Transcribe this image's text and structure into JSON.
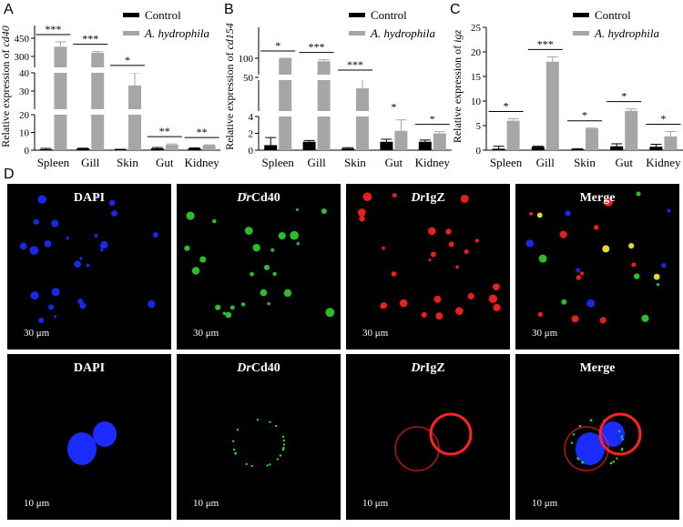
{
  "panels": {
    "a": "A",
    "b": "B",
    "c": "C",
    "d": "D"
  },
  "legend": {
    "control": "Control",
    "treated": "A. hydrophila"
  },
  "colors": {
    "control": "#000000",
    "treated": "#a6a6a6",
    "dapi": "#1a2cff",
    "cd40": "#2fd32f",
    "igz": "#ff2222",
    "yellow": "#ffee33"
  },
  "chart_data": [
    {
      "type": "bar",
      "ylabel": "Relative expression of cd40",
      "categories": [
        "Spleen",
        "Gill",
        "Skin",
        "Gut",
        "Kidney"
      ],
      "yaxis_breaks": [
        [
          0,
          20
        ],
        [
          20,
          40
        ],
        [
          300,
          450
        ]
      ],
      "yticks": [
        0,
        10,
        20,
        30,
        40,
        300,
        450
      ],
      "series": [
        {
          "name": "Control",
          "values": [
            0.5,
            1,
            0.3,
            1,
            1
          ],
          "errors": [
            0.5,
            0.1,
            0.2,
            0.5,
            0.3
          ]
        },
        {
          "name": "A. hydrophila",
          "values": [
            380,
            330,
            33,
            3,
            2.8
          ],
          "errors": [
            40,
            10,
            8,
            0.5,
            0.2
          ]
        }
      ],
      "significance": [
        "***",
        "***",
        "*",
        "**",
        "**"
      ]
    },
    {
      "type": "bar",
      "ylabel": "Relative expression of cd154",
      "categories": [
        "Spleen",
        "Gill",
        "Skin",
        "Gut",
        "Kidney"
      ],
      "yaxis_breaks": [
        [
          0,
          4
        ],
        [
          4,
          50
        ],
        [
          50,
          100
        ]
      ],
      "yticks": [
        0,
        2,
        4,
        50,
        100
      ],
      "series": [
        {
          "name": "Control",
          "values": [
            0.6,
            1,
            0.2,
            1,
            1
          ],
          "errors": [
            0.9,
            0.15,
            0.1,
            0.3,
            0.2
          ]
        },
        {
          "name": "A. hydrophila",
          "values": [
            110,
            92,
            35,
            2.3,
            2
          ],
          "errors": [
            60,
            4,
            15,
            1.3,
            0.2
          ]
        }
      ],
      "significance": [
        "*",
        "***",
        "***",
        "*",
        "*"
      ]
    },
    {
      "type": "bar",
      "ylabel": "Relative expression of igz",
      "categories": [
        "Spleen",
        "Gill",
        "Skin",
        "Gut",
        "Kidney"
      ],
      "ylim": [
        0,
        25
      ],
      "yticks": [
        0,
        5,
        10,
        15,
        20,
        25
      ],
      "series": [
        {
          "name": "Control",
          "values": [
            0.3,
            0.7,
            0.2,
            0.8,
            0.7
          ],
          "errors": [
            0.5,
            0.1,
            0.1,
            0.5,
            0.5
          ]
        },
        {
          "name": "A. hydrophila",
          "values": [
            6,
            18,
            4.4,
            8,
            2.8
          ],
          "errors": [
            0.4,
            1,
            0.1,
            0.4,
            1
          ]
        }
      ],
      "significance": [
        "*",
        "***",
        "*",
        "*",
        "*"
      ]
    }
  ],
  "microscopy": {
    "labels": [
      "DAPI",
      "DrCd40",
      "DrIgZ",
      "Merge"
    ],
    "label_parts": [
      [
        "",
        "DAPI"
      ],
      [
        "Dr",
        "Cd40"
      ],
      [
        "Dr",
        "IgZ"
      ],
      [
        "",
        "Merge"
      ]
    ],
    "scale_top": "30 μm",
    "scale_bottom": "10 μm"
  }
}
